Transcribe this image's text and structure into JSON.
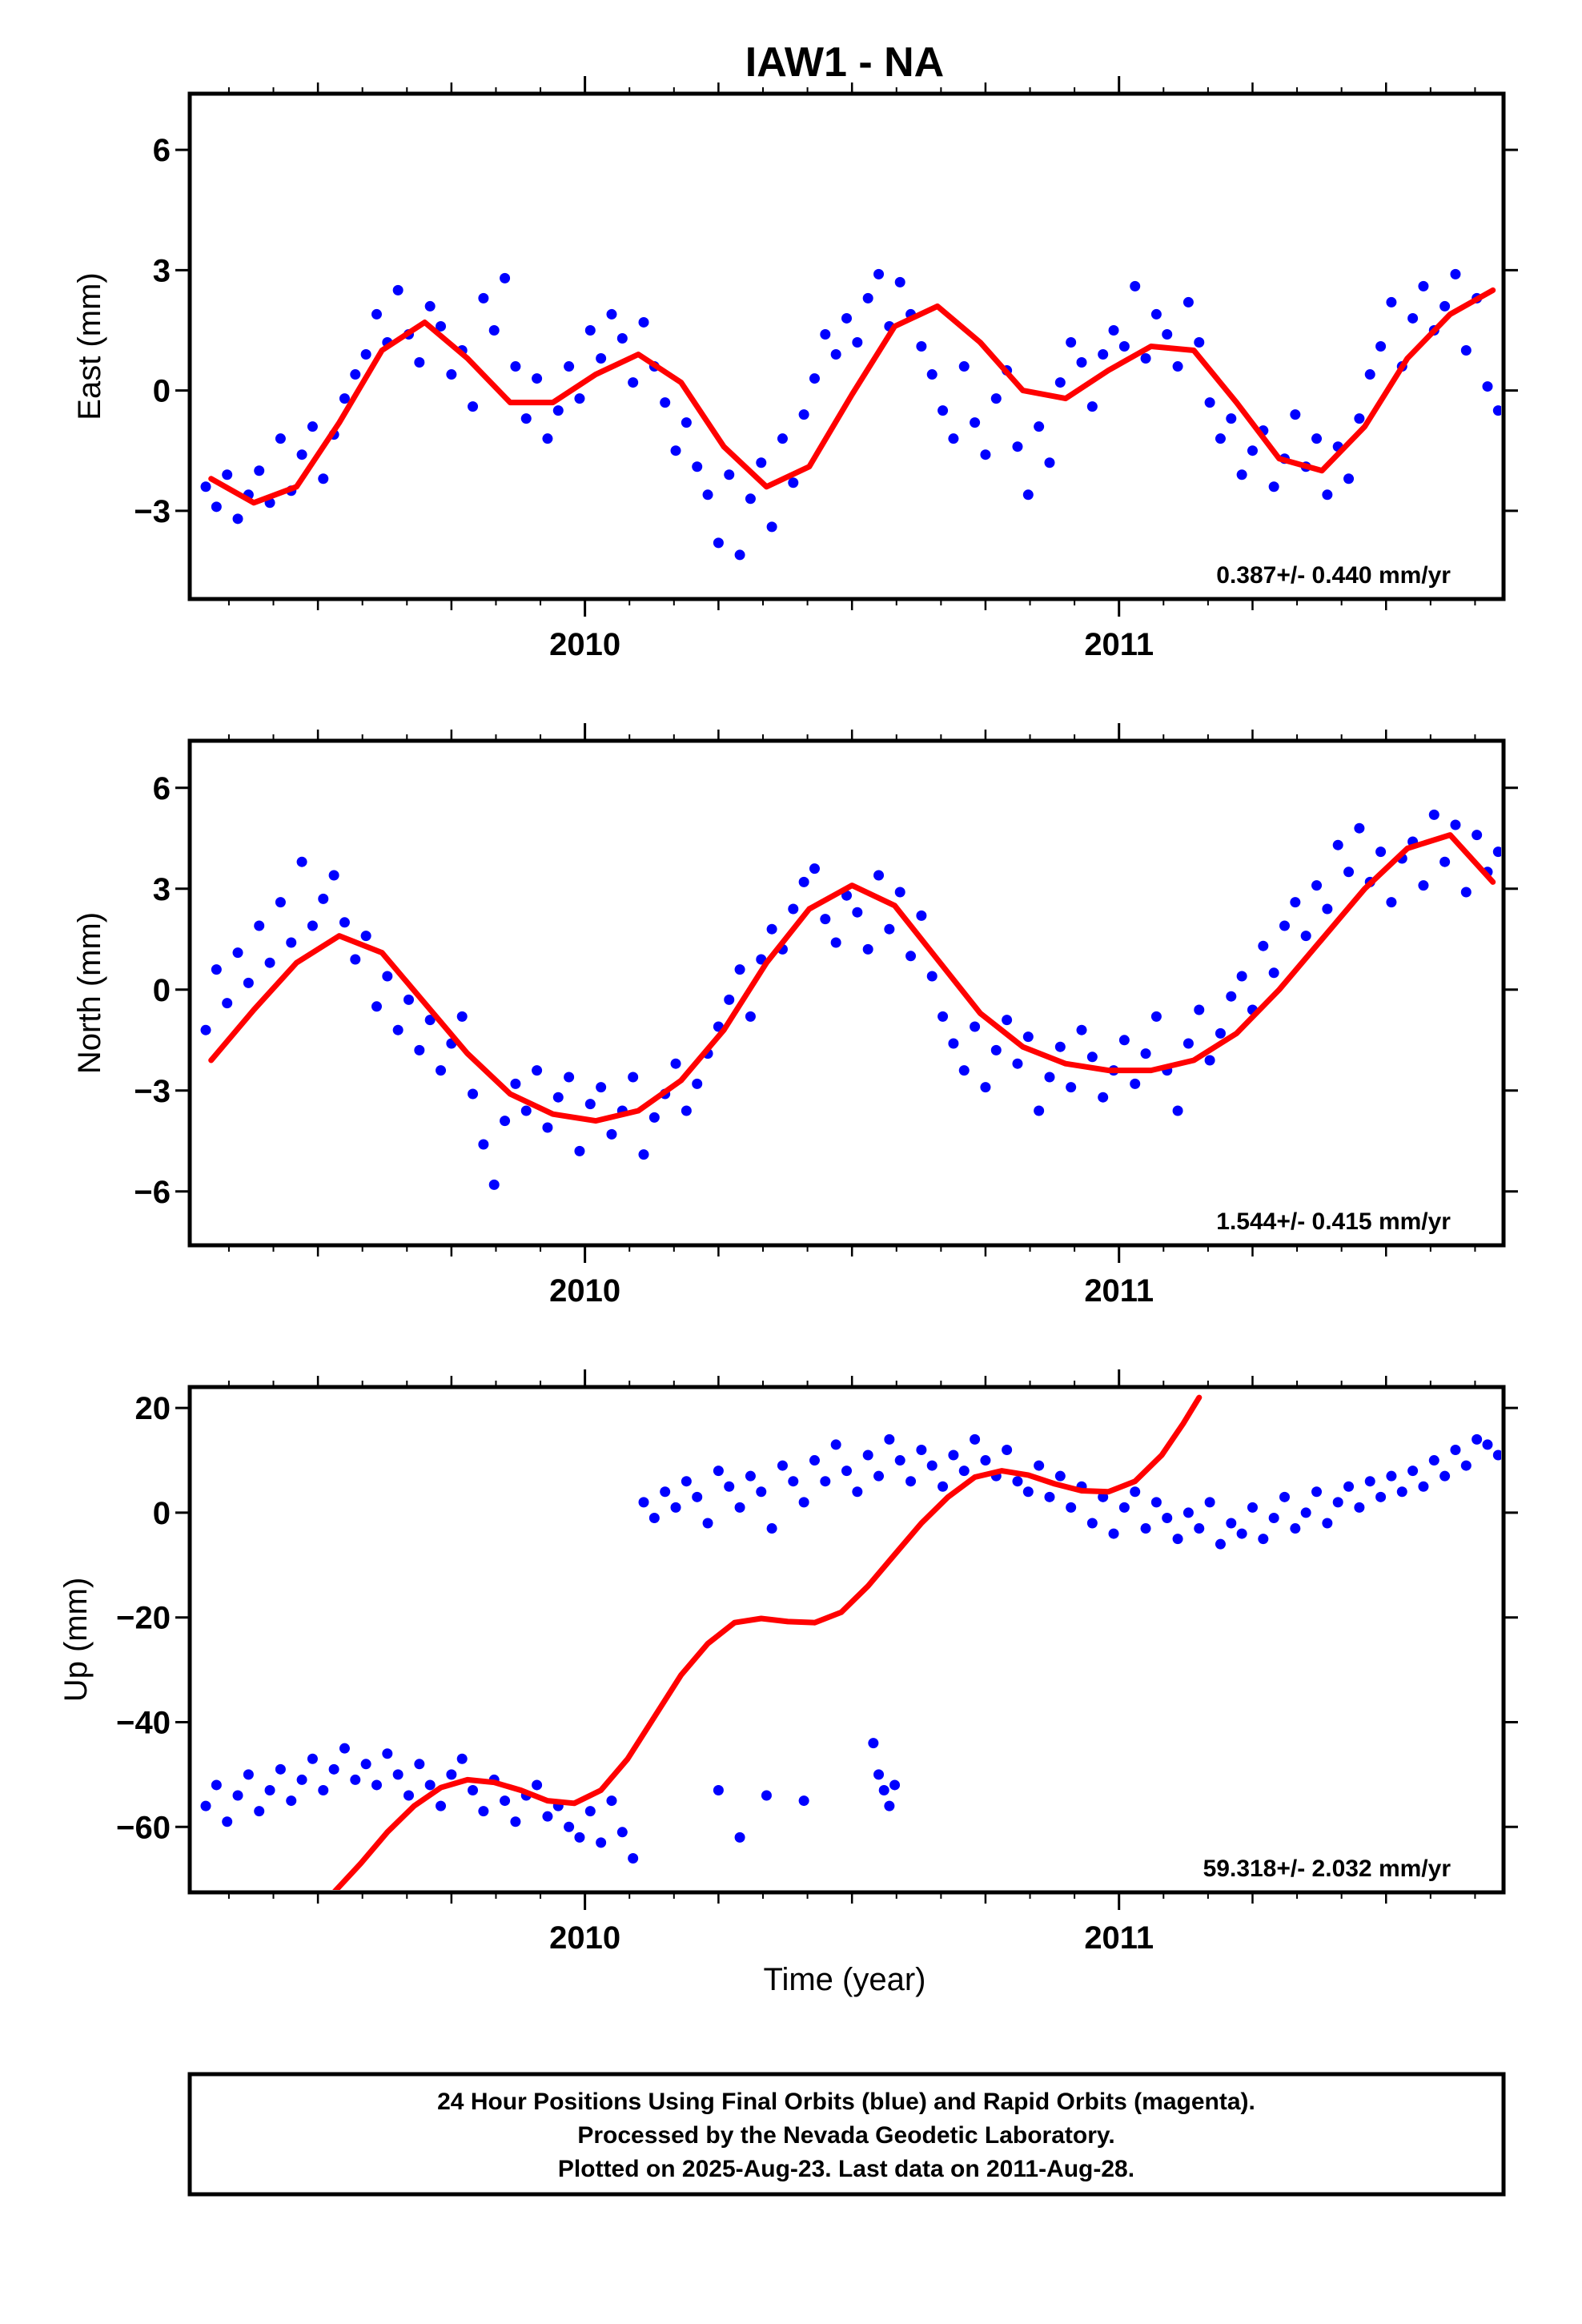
{
  "title": "IAW1 - NA",
  "xlabel": "Time (year)",
  "footer": {
    "line1": "24 Hour Positions Using Final Orbits (blue) and Rapid Orbits (magenta).",
    "line2": "Processed by the Nevada Geodetic Laboratory.",
    "line3": "Plotted on 2025-Aug-23. Last data on 2011-Aug-28."
  },
  "colors": {
    "points": "#0000ff",
    "fit": "#ff0000",
    "frame": "#000000"
  },
  "chart_data": [
    {
      "type": "scatter",
      "ylabel": "East (mm)",
      "rate_text": "0.387+/- 0.440 mm/yr",
      "xlim": [
        2009.26,
        2011.72
      ],
      "ylim": [
        -5.2,
        7.4
      ],
      "x_ticks": [
        2010,
        2011
      ],
      "y_ticks": [
        6,
        3,
        0,
        -3
      ],
      "y_tick_labels": [
        "6",
        "3",
        "0",
        "−3"
      ],
      "grid": false,
      "fit": {
        "x": [
          2009.3,
          2009.38,
          2009.46,
          2009.54,
          2009.62,
          2009.7,
          2009.78,
          2009.86,
          2009.94,
          2010.02,
          2010.1,
          2010.18,
          2010.26,
          2010.34,
          2010.42,
          2010.5,
          2010.58,
          2010.66,
          2010.74,
          2010.82,
          2010.9,
          2010.98,
          2011.06,
          2011.14,
          2011.22,
          2011.3,
          2011.38,
          2011.46,
          2011.54,
          2011.62,
          2011.7
        ],
        "y": [
          -2.2,
          -2.8,
          -2.4,
          -0.8,
          1.0,
          1.7,
          0.8,
          -0.3,
          -0.3,
          0.4,
          0.9,
          0.2,
          -1.4,
          -2.4,
          -1.9,
          -0.1,
          1.6,
          2.1,
          1.2,
          0.0,
          -0.2,
          0.5,
          1.1,
          1.0,
          -0.3,
          -1.7,
          -2.0,
          -0.9,
          0.8,
          1.9,
          2.5
        ]
      },
      "series": [
        {
          "name": "Final Orbits",
          "x": [
            2009.29,
            2009.31,
            2009.33,
            2009.35,
            2009.37,
            2009.39,
            2009.41,
            2009.43,
            2009.45,
            2009.47,
            2009.49,
            2009.51,
            2009.53,
            2009.55,
            2009.57,
            2009.59,
            2009.61,
            2009.63,
            2009.65,
            2009.67,
            2009.69,
            2009.71,
            2009.73,
            2009.75,
            2009.77,
            2009.79,
            2009.81,
            2009.83,
            2009.85,
            2009.87,
            2009.89,
            2009.91,
            2009.93,
            2009.95,
            2009.97,
            2009.99,
            2010.01,
            2010.03,
            2010.05,
            2010.07,
            2010.09,
            2010.11,
            2010.13,
            2010.15,
            2010.17,
            2010.19,
            2010.21,
            2010.23,
            2010.25,
            2010.27,
            2010.29,
            2010.31,
            2010.33,
            2010.35,
            2010.37,
            2010.39,
            2010.41,
            2010.43,
            2010.45,
            2010.47,
            2010.49,
            2010.51,
            2010.53,
            2010.55,
            2010.57,
            2010.59,
            2010.61,
            2010.63,
            2010.65,
            2010.67,
            2010.69,
            2010.71,
            2010.73,
            2010.75,
            2010.77,
            2010.79,
            2010.81,
            2010.83,
            2010.85,
            2010.87,
            2010.89,
            2010.91,
            2010.93,
            2010.95,
            2010.97,
            2010.99,
            2011.01,
            2011.03,
            2011.05,
            2011.07,
            2011.09,
            2011.11,
            2011.13,
            2011.15,
            2011.17,
            2011.19,
            2011.21,
            2011.23,
            2011.25,
            2011.27,
            2011.29,
            2011.31,
            2011.33,
            2011.35,
            2011.37,
            2011.39,
            2011.41,
            2011.43,
            2011.45,
            2011.47,
            2011.49,
            2011.51,
            2011.53,
            2011.55,
            2011.57,
            2011.59,
            2011.61,
            2011.63,
            2011.65,
            2011.67,
            2011.69,
            2011.71
          ],
          "y": [
            -2.4,
            -2.9,
            -2.1,
            -3.2,
            -2.6,
            -2.0,
            -2.8,
            -1.2,
            -2.5,
            -1.6,
            -0.9,
            -2.2,
            -1.1,
            -0.2,
            0.4,
            0.9,
            1.9,
            1.2,
            2.5,
            1.4,
            0.7,
            2.1,
            1.6,
            0.4,
            1.0,
            -0.4,
            2.3,
            1.5,
            2.8,
            0.6,
            -0.7,
            0.3,
            -1.2,
            -0.5,
            0.6,
            -0.2,
            1.5,
            0.8,
            1.9,
            1.3,
            0.2,
            1.7,
            0.6,
            -0.3,
            -1.5,
            -0.8,
            -1.9,
            -2.6,
            -3.8,
            -2.1,
            -4.1,
            -2.7,
            -1.8,
            -3.4,
            -1.2,
            -2.3,
            -0.6,
            0.3,
            1.4,
            0.9,
            1.8,
            1.2,
            2.3,
            2.9,
            1.6,
            2.7,
            1.9,
            1.1,
            0.4,
            -0.5,
            -1.2,
            0.6,
            -0.8,
            -1.6,
            -0.2,
            0.5,
            -1.4,
            -2.6,
            -0.9,
            -1.8,
            0.2,
            1.2,
            0.7,
            -0.4,
            0.9,
            1.5,
            1.1,
            2.6,
            0.8,
            1.9,
            1.4,
            0.6,
            2.2,
            1.2,
            -0.3,
            -1.2,
            -0.7,
            -2.1,
            -1.5,
            -1.0,
            -2.4,
            -1.7,
            -0.6,
            -1.9,
            -1.2,
            -2.6,
            -1.4,
            -2.2,
            -0.7,
            0.4,
            1.1,
            2.2,
            0.6,
            1.8,
            2.6,
            1.5,
            2.1,
            2.9,
            1.0,
            2.3,
            0.1,
            -0.5
          ]
        }
      ]
    },
    {
      "type": "scatter",
      "ylabel": "North (mm)",
      "rate_text": "1.544+/- 0.415 mm/yr",
      "xlim": [
        2009.26,
        2011.72
      ],
      "ylim": [
        -7.6,
        7.4
      ],
      "x_ticks": [
        2010,
        2011
      ],
      "y_ticks": [
        6,
        3,
        0,
        -3,
        -6
      ],
      "y_tick_labels": [
        "6",
        "3",
        "0",
        "−3",
        "−6"
      ],
      "grid": false,
      "fit": {
        "x": [
          2009.3,
          2009.38,
          2009.46,
          2009.54,
          2009.62,
          2009.7,
          2009.78,
          2009.86,
          2009.94,
          2010.02,
          2010.1,
          2010.18,
          2010.26,
          2010.34,
          2010.42,
          2010.5,
          2010.58,
          2010.66,
          2010.74,
          2010.82,
          2010.9,
          2010.98,
          2011.06,
          2011.14,
          2011.22,
          2011.3,
          2011.38,
          2011.46,
          2011.54,
          2011.62,
          2011.7
        ],
        "y": [
          -2.1,
          -0.6,
          0.8,
          1.6,
          1.1,
          -0.4,
          -1.9,
          -3.1,
          -3.7,
          -3.9,
          -3.6,
          -2.7,
          -1.2,
          0.8,
          2.4,
          3.1,
          2.5,
          0.9,
          -0.7,
          -1.7,
          -2.2,
          -2.4,
          -2.4,
          -2.1,
          -1.3,
          0.0,
          1.5,
          3.0,
          4.2,
          4.6,
          3.2
        ]
      },
      "series": [
        {
          "name": "Final Orbits",
          "x": [
            2009.29,
            2009.31,
            2009.33,
            2009.35,
            2009.37,
            2009.39,
            2009.41,
            2009.43,
            2009.45,
            2009.47,
            2009.49,
            2009.51,
            2009.53,
            2009.55,
            2009.57,
            2009.59,
            2009.61,
            2009.63,
            2009.65,
            2009.67,
            2009.69,
            2009.71,
            2009.73,
            2009.75,
            2009.77,
            2009.79,
            2009.81,
            2009.83,
            2009.85,
            2009.87,
            2009.89,
            2009.91,
            2009.93,
            2009.95,
            2009.97,
            2009.99,
            2010.01,
            2010.03,
            2010.05,
            2010.07,
            2010.09,
            2010.11,
            2010.13,
            2010.15,
            2010.17,
            2010.19,
            2010.21,
            2010.23,
            2010.25,
            2010.27,
            2010.29,
            2010.31,
            2010.33,
            2010.35,
            2010.37,
            2010.39,
            2010.41,
            2010.43,
            2010.45,
            2010.47,
            2010.49,
            2010.51,
            2010.53,
            2010.55,
            2010.57,
            2010.59,
            2010.61,
            2010.63,
            2010.65,
            2010.67,
            2010.69,
            2010.71,
            2010.73,
            2010.75,
            2010.77,
            2010.79,
            2010.81,
            2010.83,
            2010.85,
            2010.87,
            2010.89,
            2010.91,
            2010.93,
            2010.95,
            2010.97,
            2010.99,
            2011.01,
            2011.03,
            2011.05,
            2011.07,
            2011.09,
            2011.11,
            2011.13,
            2011.15,
            2011.17,
            2011.19,
            2011.21,
            2011.23,
            2011.25,
            2011.27,
            2011.29,
            2011.31,
            2011.33,
            2011.35,
            2011.37,
            2011.39,
            2011.41,
            2011.43,
            2011.45,
            2011.47,
            2011.49,
            2011.51,
            2011.53,
            2011.55,
            2011.57,
            2011.59,
            2011.61,
            2011.63,
            2011.65,
            2011.67,
            2011.69,
            2011.71
          ],
          "y": [
            -1.2,
            0.6,
            -0.4,
            1.1,
            0.2,
            1.9,
            0.8,
            2.6,
            1.4,
            3.8,
            1.9,
            2.7,
            3.4,
            2.0,
            0.9,
            1.6,
            -0.5,
            0.4,
            -1.2,
            -0.3,
            -1.8,
            -0.9,
            -2.4,
            -1.6,
            -0.8,
            -3.1,
            -4.6,
            -5.8,
            -3.9,
            -2.8,
            -3.6,
            -2.4,
            -4.1,
            -3.2,
            -2.6,
            -4.8,
            -3.4,
            -2.9,
            -4.3,
            -3.6,
            -2.6,
            -4.9,
            -3.8,
            -3.1,
            -2.2,
            -3.6,
            -2.8,
            -1.9,
            -1.1,
            -0.3,
            0.6,
            -0.8,
            0.9,
            1.8,
            1.2,
            2.4,
            3.2,
            3.6,
            2.1,
            1.4,
            2.8,
            2.3,
            1.2,
            3.4,
            1.8,
            2.9,
            1.0,
            2.2,
            0.4,
            -0.8,
            -1.6,
            -2.4,
            -1.1,
            -2.9,
            -1.8,
            -0.9,
            -2.2,
            -1.4,
            -3.6,
            -2.6,
            -1.7,
            -2.9,
            -1.2,
            -2.0,
            -3.2,
            -2.4,
            -1.5,
            -2.8,
            -1.9,
            -0.8,
            -2.4,
            -3.6,
            -1.6,
            -0.6,
            -2.1,
            -1.3,
            -0.2,
            0.4,
            -0.6,
            1.3,
            0.5,
            1.9,
            2.6,
            1.6,
            3.1,
            2.4,
            4.3,
            3.5,
            4.8,
            3.2,
            4.1,
            2.6,
            3.9,
            4.4,
            3.1,
            5.2,
            3.8,
            4.9,
            2.9,
            4.6,
            3.5,
            4.1
          ]
        }
      ]
    },
    {
      "type": "scatter",
      "ylabel": "Up (mm)",
      "rate_text": "59.318+/- 2.032 mm/yr",
      "xlim": [
        2009.26,
        2011.72
      ],
      "ylim": [
        -72.5,
        24
      ],
      "x_ticks": [
        2010,
        2011
      ],
      "y_ticks": [
        20,
        0,
        -20,
        -40,
        -60
      ],
      "y_tick_labels": [
        "20",
        "0",
        "−20",
        "−40",
        "−60"
      ],
      "grid": false,
      "fit": {
        "x": [
          2009.53,
          2009.58,
          2009.63,
          2009.68,
          2009.73,
          2009.78,
          2009.83,
          2009.88,
          2009.93,
          2009.98,
          2010.03,
          2010.08,
          2010.13,
          2010.18,
          2010.23,
          2010.28,
          2010.33,
          2010.38,
          2010.43,
          2010.48,
          2010.53,
          2010.58,
          2010.63,
          2010.68,
          2010.73,
          2010.78,
          2010.83,
          2010.88,
          2010.93,
          2010.98,
          2011.03,
          2011.08,
          2011.12,
          2011.15
        ],
        "y": [
          -72.5,
          -67,
          -61,
          -56,
          -52.5,
          -51,
          -51.5,
          -53,
          -55,
          -55.5,
          -53,
          -47,
          -39,
          -31,
          -25,
          -21,
          -20.2,
          -20.8,
          -21,
          -19,
          -14,
          -8,
          -2,
          3,
          6.8,
          8,
          7.2,
          5.5,
          4.2,
          4,
          6,
          11,
          17,
          22
        ]
      },
      "series": [
        {
          "name": "Final Orbits",
          "x": [
            2009.29,
            2009.31,
            2009.33,
            2009.35,
            2009.37,
            2009.39,
            2009.41,
            2009.43,
            2009.45,
            2009.47,
            2009.49,
            2009.51,
            2009.53,
            2009.55,
            2009.57,
            2009.59,
            2009.61,
            2009.63,
            2009.65,
            2009.67,
            2009.69,
            2009.71,
            2009.73,
            2009.75,
            2009.77,
            2009.79,
            2009.81,
            2009.83,
            2009.85,
            2009.87,
            2009.89,
            2009.91,
            2009.93,
            2009.95,
            2009.97,
            2009.99,
            2010.01,
            2010.03,
            2010.05,
            2010.07,
            2010.09,
            2010.11,
            2010.13,
            2010.15,
            2010.17,
            2010.19,
            2010.21,
            2010.23,
            2010.25,
            2010.27,
            2010.29,
            2010.31,
            2010.33,
            2010.35,
            2010.37,
            2010.39,
            2010.41,
            2010.43,
            2010.45,
            2010.47,
            2010.49,
            2010.51,
            2010.53,
            2010.55,
            2010.57,
            2010.59,
            2010.61,
            2010.63,
            2010.65,
            2010.67,
            2010.69,
            2010.71,
            2010.73,
            2010.75,
            2010.77,
            2010.79,
            2010.81,
            2010.83,
            2010.85,
            2010.87,
            2010.89,
            2010.91,
            2010.93,
            2010.95,
            2010.97,
            2010.99,
            2011.01,
            2011.03,
            2011.05,
            2011.07,
            2011.09,
            2011.11,
            2011.13,
            2011.15,
            2011.17,
            2011.19,
            2011.21,
            2011.23,
            2011.25,
            2011.27,
            2011.29,
            2011.31,
            2011.33,
            2011.35,
            2011.37,
            2011.39,
            2011.41,
            2011.43,
            2011.45,
            2011.47,
            2011.49,
            2011.51,
            2011.53,
            2011.55,
            2011.57,
            2011.59,
            2011.61,
            2011.63,
            2011.65,
            2011.67,
            2011.69,
            2011.71,
            2010.25,
            2010.29,
            2010.34,
            2010.41,
            2010.54,
            2010.55,
            2010.56,
            2010.57,
            2010.58
          ],
          "y": [
            -56,
            -52,
            -59,
            -54,
            -50,
            -57,
            -53,
            -49,
            -55,
            -51,
            -47,
            -53,
            -49,
            -45,
            -51,
            -48,
            -52,
            -46,
            -50,
            -54,
            -48,
            -52,
            -56,
            -50,
            -47,
            -53,
            -57,
            -51,
            -55,
            -59,
            -54,
            -52,
            -58,
            -56,
            -60,
            -62,
            -57,
            -63,
            -55,
            -61,
            -66,
            2,
            -1,
            4,
            1,
            6,
            3,
            -2,
            8,
            5,
            1,
            7,
            4,
            -3,
            9,
            6,
            2,
            10,
            6,
            13,
            8,
            4,
            11,
            7,
            14,
            10,
            6,
            12,
            9,
            5,
            11,
            8,
            14,
            10,
            7,
            12,
            6,
            4,
            9,
            3,
            7,
            1,
            5,
            -2,
            3,
            -4,
            1,
            4,
            -3,
            2,
            -1,
            -5,
            0,
            -3,
            2,
            -6,
            -2,
            -4,
            1,
            -5,
            -1,
            3,
            -3,
            0,
            4,
            -2,
            2,
            5,
            1,
            6,
            3,
            7,
            4,
            8,
            5,
            10,
            7,
            12,
            9,
            14,
            13,
            11,
            -53,
            -62,
            -54,
            -55,
            -44,
            -50,
            -53,
            -56,
            -52
          ]
        }
      ]
    }
  ]
}
